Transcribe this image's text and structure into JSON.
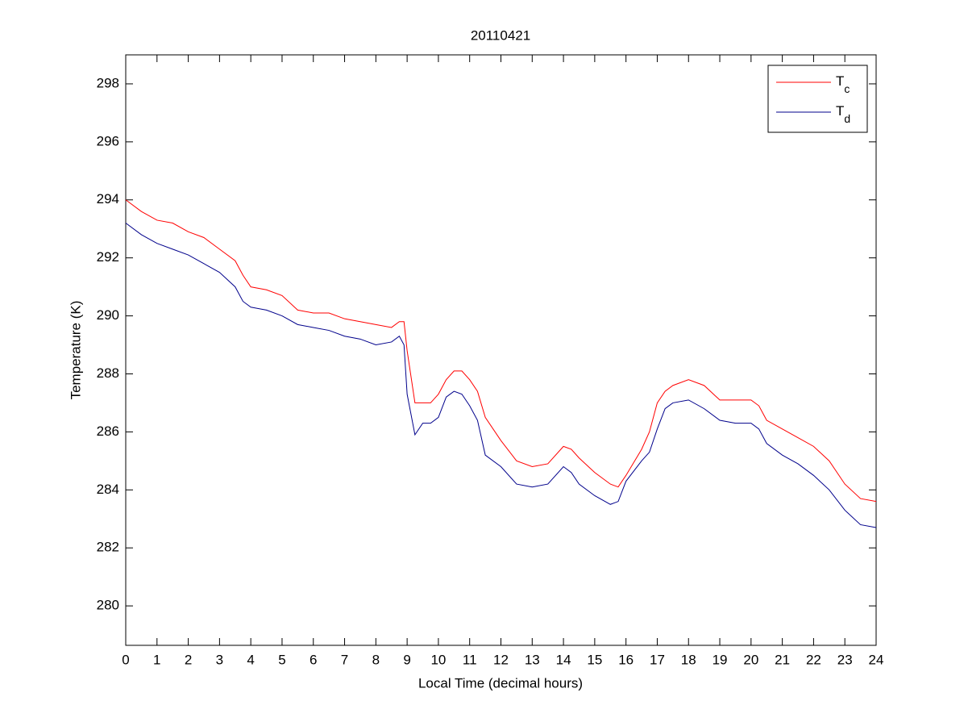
{
  "chart_data": {
    "type": "line",
    "title": "20110421",
    "x_label": "Local Time (decimal hours)",
    "y_label": "Temperature (K)",
    "x": [
      0,
      0.5,
      1,
      1.5,
      2,
      2.5,
      3,
      3.5,
      3.75,
      4,
      4.5,
      5,
      5.5,
      6,
      6.5,
      7,
      7.5,
      8,
      8.5,
      8.75,
      8.9,
      9,
      9.25,
      9.5,
      9.75,
      10,
      10.25,
      10.5,
      10.75,
      11,
      11.25,
      11.5,
      12,
      12.5,
      13,
      13.5,
      14,
      14.25,
      14.5,
      15,
      15.5,
      15.75,
      16,
      16.5,
      16.75,
      17,
      17.25,
      17.5,
      18,
      18.5,
      19,
      19.5,
      20,
      20.25,
      20.5,
      21,
      21.5,
      22,
      22.5,
      23,
      23.5,
      24
    ],
    "series": [
      {
        "name": "Tc",
        "color": "#ff0000",
        "values": [
          294.0,
          293.6,
          293.3,
          293.2,
          292.9,
          292.7,
          292.3,
          291.9,
          291.4,
          291.0,
          290.9,
          290.7,
          290.2,
          290.1,
          290.1,
          289.9,
          289.8,
          289.7,
          289.6,
          289.8,
          289.8,
          288.8,
          287.0,
          287.0,
          287.0,
          287.3,
          287.8,
          288.1,
          288.1,
          287.8,
          287.4,
          286.5,
          285.7,
          285.0,
          284.8,
          284.9,
          285.5,
          285.4,
          285.1,
          284.6,
          284.2,
          284.1,
          284.5,
          285.4,
          286.0,
          287.0,
          287.4,
          287.6,
          287.8,
          287.6,
          287.1,
          287.1,
          287.1,
          286.9,
          286.4,
          286.1,
          285.8,
          285.5,
          285.0,
          284.2,
          283.7,
          283.6
        ]
      },
      {
        "name": "Td",
        "color": "#00008b",
        "values": [
          293.2,
          292.8,
          292.5,
          292.3,
          292.1,
          291.8,
          291.5,
          291.0,
          290.5,
          290.3,
          290.2,
          290.0,
          289.7,
          289.6,
          289.5,
          289.3,
          289.2,
          289.0,
          289.1,
          289.3,
          289.0,
          287.3,
          285.9,
          286.3,
          286.3,
          286.5,
          287.2,
          287.4,
          287.3,
          286.9,
          286.4,
          285.2,
          284.8,
          284.2,
          284.1,
          284.2,
          284.8,
          284.6,
          284.2,
          283.8,
          283.5,
          283.6,
          284.3,
          285.0,
          285.3,
          286.1,
          286.8,
          287.0,
          287.1,
          286.8,
          286.4,
          286.3,
          286.3,
          286.1,
          285.6,
          285.2,
          284.9,
          284.5,
          284.0,
          283.3,
          282.8,
          282.7
        ]
      }
    ],
    "xlim": [
      0,
      24
    ],
    "xticks": [
      0,
      1,
      2,
      3,
      4,
      5,
      6,
      7,
      8,
      9,
      10,
      11,
      12,
      13,
      14,
      15,
      16,
      17,
      18,
      19,
      20,
      21,
      22,
      23,
      24
    ],
    "ylim": [
      278.64,
      299
    ],
    "yticks": [
      280,
      282,
      284,
      286,
      288,
      290,
      292,
      294,
      296,
      298
    ],
    "legend_position": "northeast",
    "grid": false
  }
}
